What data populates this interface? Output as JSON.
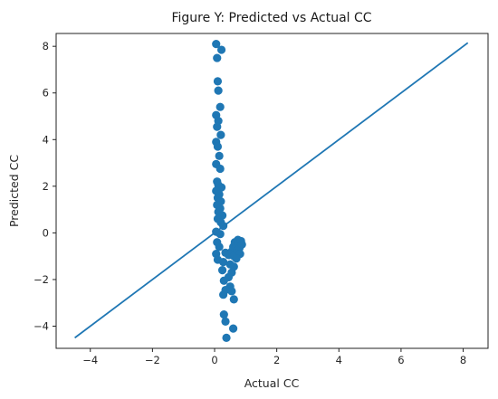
{
  "chart_data": {
    "type": "scatter",
    "title": "Figure Y: Predicted vs Actual CC",
    "xlabel": "Actual CC",
    "ylabel": "Predicted CC",
    "xlim": [
      -5.1,
      8.8
    ],
    "ylim": [
      -4.95,
      8.55
    ],
    "xticks": [
      -4,
      -2,
      0,
      2,
      4,
      6,
      8
    ],
    "yticks": [
      -4,
      -2,
      0,
      2,
      4,
      6,
      8
    ],
    "xtick_labels": [
      "−4",
      "−2",
      "0",
      "2",
      "4",
      "6",
      "8"
    ],
    "ytick_labels": [
      "−4",
      "−2",
      "0",
      "2",
      "4",
      "6",
      "8"
    ],
    "grid": false,
    "legend": "none",
    "series": [
      {
        "kind": "scatter",
        "color": "#1f77b4",
        "points": [
          {
            "x": 0.05,
            "y": 8.1
          },
          {
            "x": 0.22,
            "y": 7.85
          },
          {
            "x": 0.08,
            "y": 7.5
          },
          {
            "x": 0.1,
            "y": 6.5
          },
          {
            "x": 0.12,
            "y": 6.1
          },
          {
            "x": 0.18,
            "y": 5.4
          },
          {
            "x": 0.05,
            "y": 5.05
          },
          {
            "x": 0.12,
            "y": 4.8
          },
          {
            "x": 0.08,
            "y": 4.55
          },
          {
            "x": 0.2,
            "y": 4.2
          },
          {
            "x": 0.05,
            "y": 3.9
          },
          {
            "x": 0.1,
            "y": 3.7
          },
          {
            "x": 0.15,
            "y": 3.3
          },
          {
            "x": 0.05,
            "y": 2.95
          },
          {
            "x": 0.18,
            "y": 2.75
          },
          {
            "x": 0.08,
            "y": 2.2
          },
          {
            "x": 0.12,
            "y": 2.05
          },
          {
            "x": 0.22,
            "y": 1.95
          },
          {
            "x": 0.05,
            "y": 1.8
          },
          {
            "x": 0.15,
            "y": 1.65
          },
          {
            "x": 0.1,
            "y": 1.5
          },
          {
            "x": 0.2,
            "y": 1.35
          },
          {
            "x": 0.08,
            "y": 1.2
          },
          {
            "x": 0.18,
            "y": 1.05
          },
          {
            "x": 0.12,
            "y": 0.9
          },
          {
            "x": 0.25,
            "y": 0.75
          },
          {
            "x": 0.1,
            "y": 0.6
          },
          {
            "x": 0.2,
            "y": 0.45
          },
          {
            "x": 0.28,
            "y": 0.3
          },
          {
            "x": 0.05,
            "y": 0.05
          },
          {
            "x": 0.18,
            "y": -0.05
          },
          {
            "x": 0.08,
            "y": -0.4
          },
          {
            "x": 0.15,
            "y": -0.6
          },
          {
            "x": 0.05,
            "y": -0.9
          },
          {
            "x": 0.1,
            "y": -1.15
          },
          {
            "x": 0.28,
            "y": -1.25
          },
          {
            "x": 0.35,
            "y": -0.85
          },
          {
            "x": 0.45,
            "y": -0.95
          },
          {
            "x": 0.5,
            "y": -1.35
          },
          {
            "x": 0.55,
            "y": -0.8
          },
          {
            "x": 0.6,
            "y": -0.6
          },
          {
            "x": 0.62,
            "y": -1.0
          },
          {
            "x": 0.65,
            "y": -0.4
          },
          {
            "x": 0.7,
            "y": -0.55
          },
          {
            "x": 0.72,
            "y": -0.75
          },
          {
            "x": 0.75,
            "y": -0.3
          },
          {
            "x": 0.78,
            "y": -0.45
          },
          {
            "x": 0.8,
            "y": -0.65
          },
          {
            "x": 0.82,
            "y": -0.9
          },
          {
            "x": 0.85,
            "y": -0.35
          },
          {
            "x": 0.88,
            "y": -0.5
          },
          {
            "x": 0.7,
            "y": -1.1
          },
          {
            "x": 0.25,
            "y": -1.6
          },
          {
            "x": 0.55,
            "y": -1.7
          },
          {
            "x": 0.62,
            "y": -1.45
          },
          {
            "x": 0.45,
            "y": -1.9
          },
          {
            "x": 0.3,
            "y": -2.05
          },
          {
            "x": 0.5,
            "y": -2.3
          },
          {
            "x": 0.35,
            "y": -2.45
          },
          {
            "x": 0.55,
            "y": -2.5
          },
          {
            "x": 0.62,
            "y": -2.85
          },
          {
            "x": 0.28,
            "y": -2.65
          },
          {
            "x": 0.3,
            "y": -3.5
          },
          {
            "x": 0.35,
            "y": -3.8
          },
          {
            "x": 0.6,
            "y": -4.1
          },
          {
            "x": 0.38,
            "y": -4.5
          }
        ]
      },
      {
        "kind": "line",
        "color": "#1f77b4",
        "points": [
          {
            "x": -4.5,
            "y": -4.5
          },
          {
            "x": 8.15,
            "y": 8.15
          }
        ]
      }
    ]
  }
}
